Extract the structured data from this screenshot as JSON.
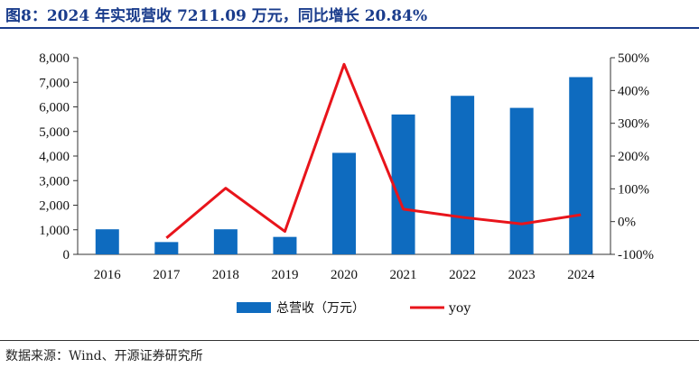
{
  "title": "图8：2024 年实现营收 7211.09 万元，同比增长 20.84%",
  "source": "数据来源：Wind、开源证券研究所",
  "colors": {
    "bar": "#0e6bbf",
    "line": "#e8141b",
    "title": "#1a3c8c"
  },
  "chart_data": {
    "type": "bar",
    "categories": [
      "2016",
      "2017",
      "2018",
      "2019",
      "2020",
      "2021",
      "2022",
      "2023",
      "2024"
    ],
    "series": [
      {
        "name": "总营收（万元）",
        "type": "bar",
        "axis": "left",
        "values": [
          1020,
          500,
          1020,
          710,
          4130,
          5690,
          6450,
          5960,
          7211.09
        ]
      },
      {
        "name": "yoy",
        "type": "line",
        "axis": "right",
        "values": [
          null,
          -50,
          102,
          -30,
          480,
          38,
          13,
          -7,
          20.84
        ]
      }
    ],
    "y_left": {
      "min": 0,
      "max": 8000,
      "ticks": [
        "0",
        "1,000",
        "2,000",
        "3,000",
        "4,000",
        "5,000",
        "6,000",
        "7,000",
        "8,000"
      ]
    },
    "y_right": {
      "min": -100,
      "max": 500,
      "ticks": [
        "-100%",
        "0%",
        "100%",
        "200%",
        "300%",
        "400%",
        "500%"
      ]
    },
    "legend_position": "bottom-center",
    "grid": false
  }
}
